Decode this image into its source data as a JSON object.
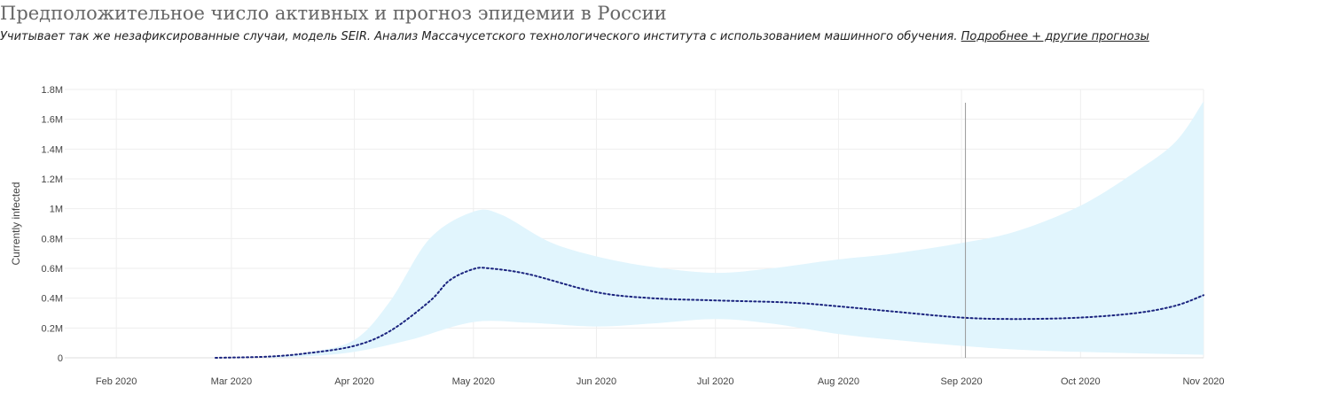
{
  "header": {
    "title": "Предположительное число активных и прогноз эпидемии в России",
    "subtitle": "Учитывает так же незафиксированные случаи, модель SEIR. Анализ Массачусетского технологического института с использованием машинного обучения.",
    "link_label": "Подробнее + другие прогнозы"
  },
  "chart_data": {
    "type": "line",
    "title": "",
    "xlabel": "",
    "ylabel": "Currently infected",
    "xlim": [
      "2020-01-19",
      "2020-11-01"
    ],
    "ylim": [
      0,
      1800000
    ],
    "grid": true,
    "legend": "none",
    "x_ticks": [
      {
        "date": "2020-02-01",
        "label": "Feb 2020"
      },
      {
        "date": "2020-03-01",
        "label": "Mar 2020"
      },
      {
        "date": "2020-04-01",
        "label": "Apr 2020"
      },
      {
        "date": "2020-05-01",
        "label": "May 2020"
      },
      {
        "date": "2020-06-01",
        "label": "Jun 2020"
      },
      {
        "date": "2020-07-01",
        "label": "Jul 2020"
      },
      {
        "date": "2020-08-01",
        "label": "Aug 2020"
      },
      {
        "date": "2020-09-01",
        "label": "Sep 2020"
      },
      {
        "date": "2020-10-01",
        "label": "Oct 2020"
      },
      {
        "date": "2020-11-01",
        "label": "Nov 2020"
      }
    ],
    "y_ticks": [
      {
        "value": 0,
        "label": "0"
      },
      {
        "value": 200000,
        "label": "0.2M"
      },
      {
        "value": 400000,
        "label": "0.4M"
      },
      {
        "value": 600000,
        "label": "0.6M"
      },
      {
        "value": 800000,
        "label": "0.8M"
      },
      {
        "value": 1000000,
        "label": "1M"
      },
      {
        "value": 1200000,
        "label": "1.2M"
      },
      {
        "value": 1400000,
        "label": "1.4M"
      },
      {
        "value": 1600000,
        "label": "1.6M"
      },
      {
        "value": 1800000,
        "label": "1.8M"
      }
    ],
    "series": [
      {
        "kind": "line",
        "style": "dotted",
        "color": "#1a237e",
        "points": [
          [
            "2020-02-26",
            0
          ],
          [
            "2020-03-10",
            8000
          ],
          [
            "2020-03-20",
            30000
          ],
          [
            "2020-04-01",
            80000
          ],
          [
            "2020-04-10",
            180000
          ],
          [
            "2020-04-20",
            380000
          ],
          [
            "2020-04-25",
            520000
          ],
          [
            "2020-05-01",
            595000
          ],
          [
            "2020-05-05",
            600000
          ],
          [
            "2020-05-15",
            560000
          ],
          [
            "2020-06-01",
            440000
          ],
          [
            "2020-06-15",
            400000
          ],
          [
            "2020-07-01",
            385000
          ],
          [
            "2020-07-20",
            370000
          ],
          [
            "2020-08-01",
            345000
          ],
          [
            "2020-08-15",
            310000
          ],
          [
            "2020-09-01",
            270000
          ],
          [
            "2020-09-15",
            260000
          ],
          [
            "2020-10-01",
            270000
          ],
          [
            "2020-10-15",
            300000
          ],
          [
            "2020-10-25",
            350000
          ],
          [
            "2020-11-01",
            420000
          ]
        ]
      },
      {
        "kind": "band",
        "color": "#e1f5fd",
        "upper": [
          [
            "2020-03-10",
            8000
          ],
          [
            "2020-03-20",
            35000
          ],
          [
            "2020-04-01",
            120000
          ],
          [
            "2020-04-10",
            380000
          ],
          [
            "2020-04-20",
            800000
          ],
          [
            "2020-05-01",
            980000
          ],
          [
            "2020-05-08",
            960000
          ],
          [
            "2020-05-20",
            780000
          ],
          [
            "2020-06-01",
            680000
          ],
          [
            "2020-06-15",
            610000
          ],
          [
            "2020-07-01",
            570000
          ],
          [
            "2020-07-15",
            600000
          ],
          [
            "2020-08-01",
            660000
          ],
          [
            "2020-08-15",
            700000
          ],
          [
            "2020-09-01",
            770000
          ],
          [
            "2020-09-15",
            850000
          ],
          [
            "2020-10-01",
            1020000
          ],
          [
            "2020-10-15",
            1250000
          ],
          [
            "2020-10-25",
            1450000
          ],
          [
            "2020-11-01",
            1720000
          ]
        ],
        "lower": [
          [
            "2020-03-10",
            0
          ],
          [
            "2020-03-20",
            10000
          ],
          [
            "2020-04-01",
            40000
          ],
          [
            "2020-04-15",
            120000
          ],
          [
            "2020-05-01",
            240000
          ],
          [
            "2020-05-15",
            235000
          ],
          [
            "2020-06-01",
            210000
          ],
          [
            "2020-06-15",
            230000
          ],
          [
            "2020-07-01",
            260000
          ],
          [
            "2020-07-15",
            230000
          ],
          [
            "2020-08-01",
            160000
          ],
          [
            "2020-08-15",
            120000
          ],
          [
            "2020-09-01",
            80000
          ],
          [
            "2020-09-15",
            55000
          ],
          [
            "2020-10-01",
            40000
          ],
          [
            "2020-10-15",
            30000
          ],
          [
            "2020-11-01",
            20000
          ]
        ]
      }
    ],
    "annotations": [
      {
        "kind": "vertical-line",
        "date": "2020-09-02",
        "color": "#999999"
      }
    ]
  }
}
